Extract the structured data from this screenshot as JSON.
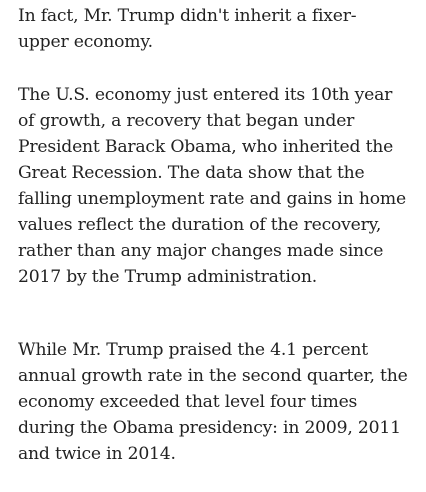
{
  "article": {
    "paragraphs": [
      {
        "lines": [
          "In fact, Mr. Trump didn't inherit a fixer-",
          "upper economy."
        ]
      },
      {
        "lines": [
          "The U.S. economy just entered its 10th year",
          "of growth, a recovery that began under",
          "President Barack Obama, who inherited the",
          "Great Recession. The data show that the",
          "falling unemployment rate and gains in home",
          "values reflect the duration of the recovery,",
          "rather than any major changes made since",
          "2017 by the Trump administration."
        ]
      },
      {
        "lines": [
          "While Mr. Trump praised the 4.1 percent",
          "annual growth rate in the second quarter, the",
          "economy exceeded that level four times",
          "during the Obama presidency: in 2009, 2011",
          "and twice in 2014."
        ]
      }
    ]
  }
}
